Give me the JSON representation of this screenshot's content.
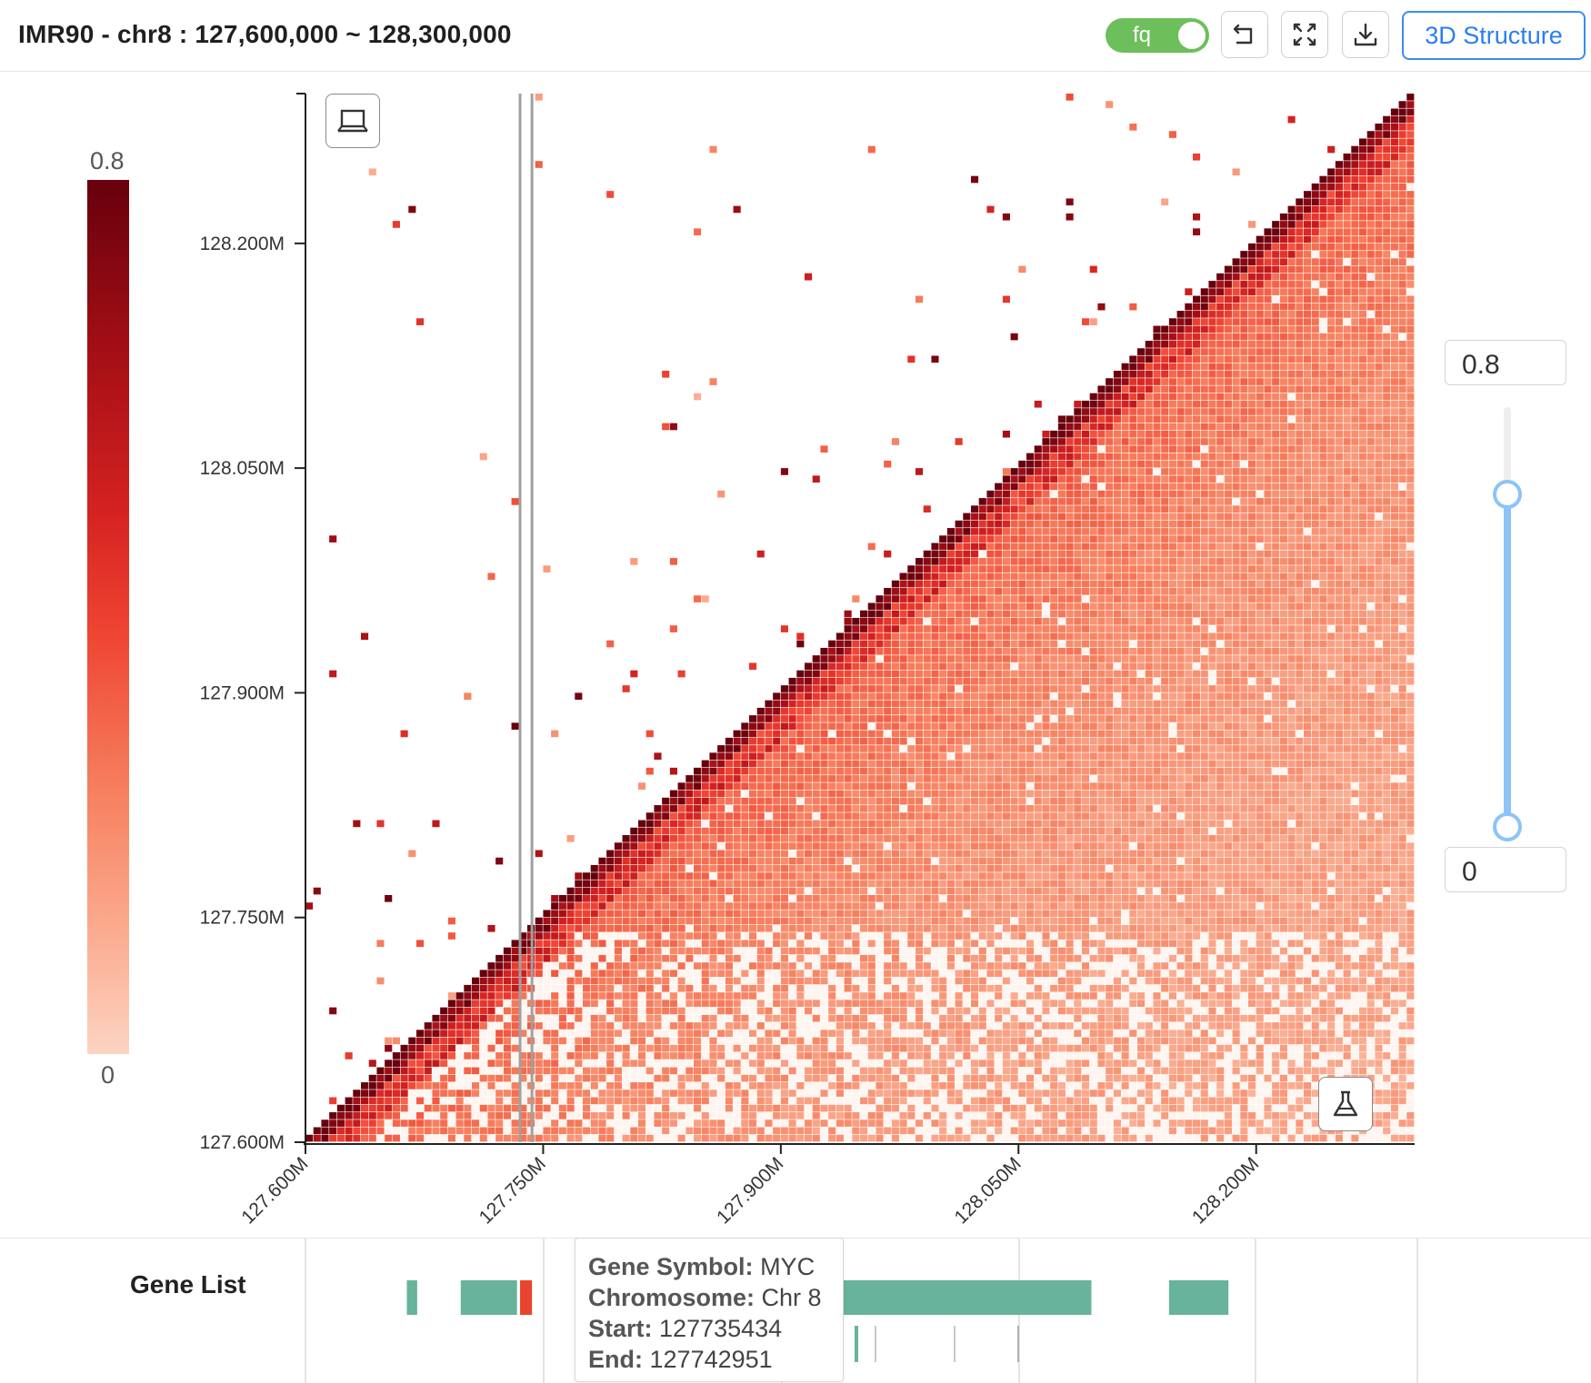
{
  "header": {
    "title": "IMR90 - chr8 : 127,600,000 ~ 128,300,000",
    "toggle_label": "fq",
    "toggle_on": true,
    "structure_button": "3D Structure",
    "icons": [
      "undo-icon",
      "fullscreen-icon",
      "download-icon"
    ]
  },
  "colorbar": {
    "max_label": "0.8",
    "min_label": "0",
    "colors": [
      "#67000d",
      "#ef4533",
      "#fcd4c2"
    ]
  },
  "range_slider": {
    "max_value": "0.8",
    "min_value": "0",
    "upper": 0.8,
    "lower": 0,
    "accent": "#8cc4f8"
  },
  "heatmap": {
    "y_ticks": [
      "128.200M",
      "128.050M",
      "127.900M",
      "127.750M",
      "127.600M"
    ],
    "x_ticks": [
      "127.600M",
      "127.750M",
      "127.900M",
      "128.050M",
      "128.200M"
    ],
    "range_start": 127600000,
    "range_end": 128300000,
    "selected_band": [
      127735434,
      127742951
    ],
    "icons": [
      "laptop-icon",
      "flask-icon"
    ]
  },
  "gene_list": {
    "label": "Gene List",
    "tooltip": {
      "symbol_key": "Gene Symbol:",
      "symbol_value": "MYC",
      "chrom_key": "Chromosome:",
      "chrom_value": "Chr 8",
      "start_key": "Start:",
      "start_value": "127735434",
      "end_key": "End:",
      "end_value": "127742951"
    },
    "genes": [
      {
        "start": 127664000,
        "end": 127670500,
        "color": "#67b39b"
      },
      {
        "start": 127698000,
        "end": 127733500,
        "color": "#67b39b"
      },
      {
        "start": 127735434,
        "end": 127742951,
        "color": "#e8442e"
      },
      {
        "start": 127934000,
        "end": 128096000,
        "color": "#67b39b"
      },
      {
        "start": 128145000,
        "end": 128182500,
        "color": "#67b39b"
      }
    ]
  }
}
